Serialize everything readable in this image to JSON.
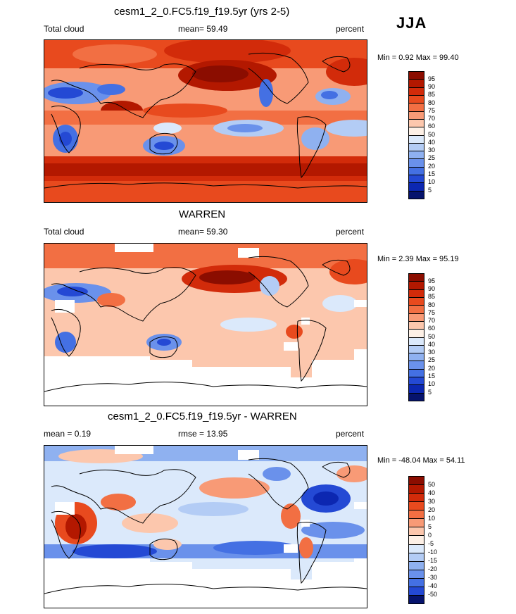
{
  "season": "JJA",
  "colors": {
    "p95": "#8b0d00",
    "p90": "#b31800",
    "p85": "#d22b0a",
    "p80": "#e84a1e",
    "p75": "#f26f43",
    "p70": "#f89a76",
    "p60": "#fcc7ad",
    "p50": "#fdf0e6",
    "p40": "#dbe9fb",
    "p30": "#b3ccf5",
    "p25": "#8fb1f0",
    "p20": "#6a91eb",
    "p15": "#4470e3",
    "p10": "#2449d4",
    "p5": "#0c27b1",
    "p0": "#06136d"
  },
  "panels": [
    {
      "title": "cesm1_2_0.FC5.f19_f19.5yr (yrs 2-5)",
      "left_label": "Total cloud",
      "center_label": "mean=  59.49",
      "right_label": "percent",
      "minmax": "Min =   0.92 Max =  99.40",
      "colorbar": [
        "95",
        "90",
        "85",
        "80",
        "75",
        "70",
        "60",
        "50",
        "40",
        "30",
        "25",
        "20",
        "15",
        "10",
        "5"
      ]
    },
    {
      "title": "WARREN",
      "left_label": "Total cloud",
      "center_label": "mean=  59.30",
      "right_label": "percent",
      "minmax": "Min =   2.39 Max =  95.19",
      "colorbar": [
        "95",
        "90",
        "85",
        "80",
        "75",
        "70",
        "60",
        "50",
        "40",
        "30",
        "25",
        "20",
        "15",
        "10",
        "5"
      ]
    },
    {
      "title": "cesm1_2_0.FC5.f19_f19.5yr - WARREN",
      "left_label": "mean =   0.19",
      "center_label": "rmse =  13.95",
      "right_label": "percent",
      "minmax": "Min = -48.04 Max =  54.11",
      "colorbar": [
        "50",
        "40",
        "30",
        "20",
        "10",
        "5",
        "0",
        "-5",
        "-10",
        "-15",
        "-20",
        "-30",
        "-40",
        "-50"
      ]
    }
  ]
}
